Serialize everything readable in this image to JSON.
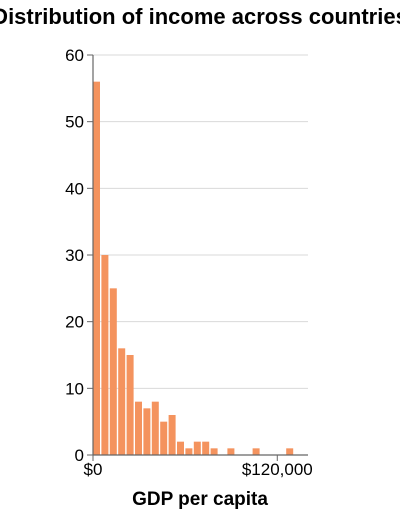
{
  "chart_data": {
    "type": "bar",
    "title": "Distribution of income across countries",
    "xlabel": "GDP per capita",
    "ylabel": "",
    "ylim": [
      0,
      60
    ],
    "yticks": [
      0,
      10,
      20,
      30,
      40,
      50,
      60
    ],
    "xticks": [
      {
        "value": 0,
        "label": "$0"
      },
      {
        "value": 120000,
        "label": "$120,000"
      }
    ],
    "xlim": [
      0,
      140000
    ],
    "bin_width": 4400,
    "values": [
      56,
      30,
      25,
      16,
      15,
      8,
      7,
      8,
      5,
      6,
      2,
      1,
      2,
      2,
      1,
      0,
      1,
      0,
      0,
      1,
      0,
      0,
      0,
      1
    ],
    "bar_color": "#f4935e",
    "grid": true
  }
}
